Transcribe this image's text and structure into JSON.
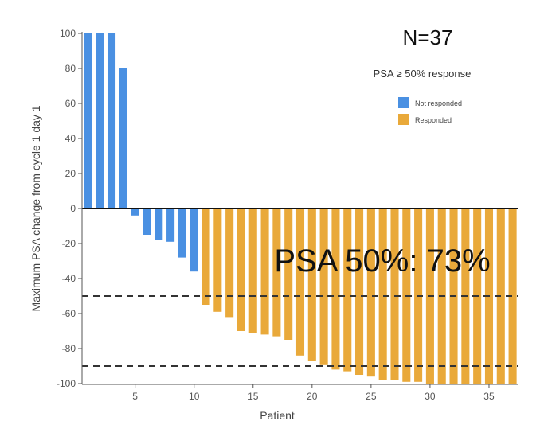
{
  "chart_data": {
    "type": "bar",
    "title": "",
    "xlabel": "Patient",
    "ylabel": "Maximum PSA change from cycle 1 day 1",
    "x": [
      1,
      2,
      3,
      4,
      5,
      6,
      7,
      8,
      9,
      10,
      11,
      12,
      13,
      14,
      15,
      16,
      17,
      18,
      19,
      20,
      21,
      22,
      23,
      24,
      25,
      26,
      27,
      28,
      29,
      30,
      31,
      32,
      33,
      34,
      35,
      36,
      37
    ],
    "values": [
      100,
      100,
      100,
      80,
      -4,
      -15,
      -18,
      -19,
      -28,
      -36,
      -55,
      -59,
      -62,
      -70,
      -71,
      -72,
      -73,
      -75,
      -84,
      -87,
      -89,
      -92,
      -93,
      -95,
      -96,
      -98,
      -98,
      -99,
      -99,
      -100,
      -100,
      -100,
      -100,
      -100,
      -100,
      -100,
      -100
    ],
    "groups": [
      "Not responded",
      "Not responded",
      "Not responded",
      "Not responded",
      "Not responded",
      "Not responded",
      "Not responded",
      "Not responded",
      "Not responded",
      "Not responded",
      "Responded",
      "Responded",
      "Responded",
      "Responded",
      "Responded",
      "Responded",
      "Responded",
      "Responded",
      "Responded",
      "Responded",
      "Responded",
      "Responded",
      "Responded",
      "Responded",
      "Responded",
      "Responded",
      "Responded",
      "Responded",
      "Responded",
      "Responded",
      "Responded",
      "Responded",
      "Responded",
      "Responded",
      "Responded",
      "Responded",
      "Responded"
    ],
    "ylim": [
      -100,
      100
    ],
    "y_ticks": [
      100,
      80,
      60,
      40,
      20,
      0,
      -20,
      -40,
      -60,
      -80,
      -100
    ],
    "x_ticks": [
      5,
      10,
      15,
      20,
      25,
      30,
      35
    ],
    "reference_lines": [
      -50,
      -90
    ],
    "zero_line": 0,
    "grid": false,
    "legend": {
      "title": "PSA ≥ 50% response",
      "placement": "top-right",
      "entries": [
        {
          "label": "Not responded",
          "color": "#4A90E2"
        },
        {
          "label": "Responded",
          "color": "#E9A93A"
        }
      ]
    },
    "annotations": {
      "n_label": "N=37",
      "response_label": "PSA 50%: 73%"
    }
  }
}
